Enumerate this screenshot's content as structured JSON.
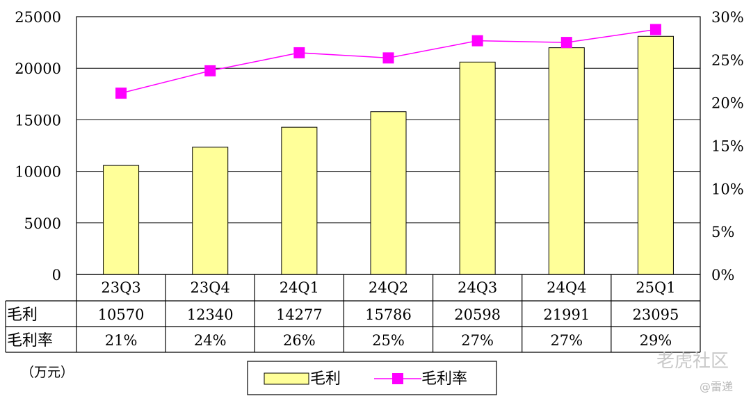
{
  "chart_data": {
    "type": "bar",
    "categories": [
      "23Q3",
      "23Q4",
      "24Q1",
      "24Q2",
      "24Q3",
      "24Q4",
      "25Q1"
    ],
    "series": [
      {
        "name": "毛利",
        "type": "bar",
        "axis": "left",
        "color": "#ffff99",
        "values": [
          10570,
          12340,
          14277,
          15786,
          20598,
          21991,
          23095
        ]
      },
      {
        "name": "毛利率",
        "type": "line",
        "axis": "right",
        "color": "#ff00ff",
        "values": [
          21.1,
          23.7,
          25.8,
          25.2,
          27.2,
          27.0,
          28.5
        ]
      }
    ],
    "ylim": [
      0,
      25000
    ],
    "yticks": [
      "0",
      "5000",
      "10000",
      "15000",
      "20000",
      "25000"
    ],
    "y2lim": [
      0,
      30
    ],
    "y2ticks": [
      "0%",
      "5%",
      "10%",
      "15%",
      "20%",
      "25%",
      "30%"
    ],
    "grid": true,
    "legend_position": "bottom",
    "unit_label": "（万元）",
    "data_table": {
      "rows": [
        {
          "label": "毛利",
          "cells": [
            "10570",
            "12340",
            "14277",
            "15786",
            "20598",
            "21991",
            "23095"
          ]
        },
        {
          "label": "毛利率",
          "cells": [
            "21%",
            "24%",
            "26%",
            "25%",
            "27%",
            "27%",
            "29%"
          ]
        }
      ]
    }
  },
  "watermark": {
    "brand": "老虎社区",
    "author": "@雷递"
  }
}
